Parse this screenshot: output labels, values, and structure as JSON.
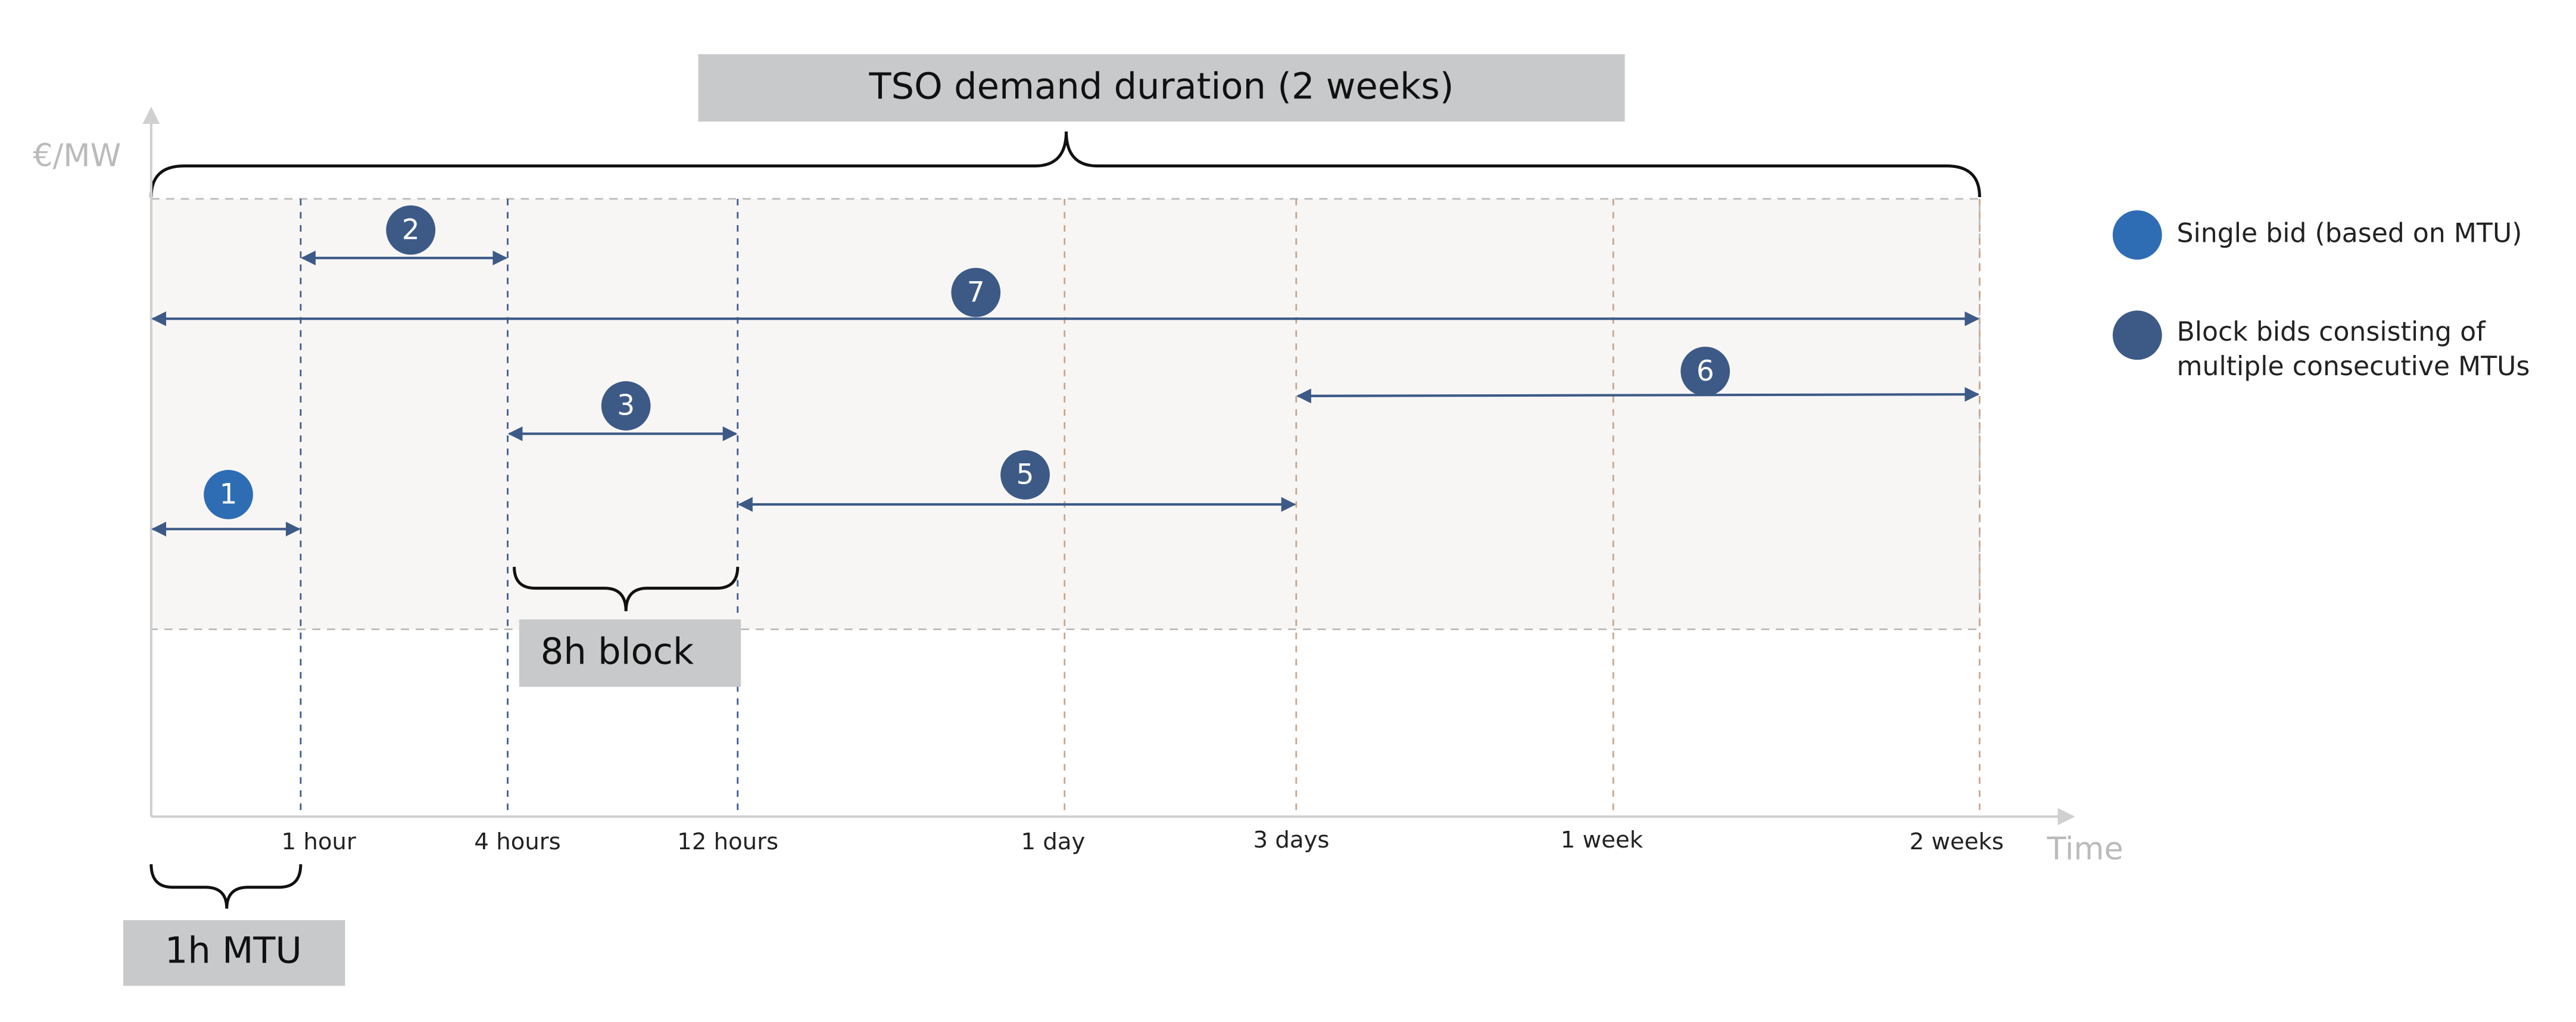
{
  "header": {
    "title": "TSO demand duration (2 weeks)"
  },
  "axes": {
    "y_label": "€/MW",
    "x_label": "Time",
    "ticks": [
      "1 hour",
      "4 hours",
      "12 hours",
      "1 day",
      "3 days",
      "1 week",
      "2 weeks"
    ]
  },
  "bids": [
    "1",
    "2",
    "3",
    "5",
    "6",
    "7"
  ],
  "annotations": {
    "block": "8h block",
    "mtu": "1h MTU"
  },
  "legend": [
    {
      "lines": [
        "Single bid (based on MTU)"
      ]
    },
    {
      "lines": [
        "Block bids consisting of",
        "multiple consecutive MTUs"
      ]
    }
  ]
}
